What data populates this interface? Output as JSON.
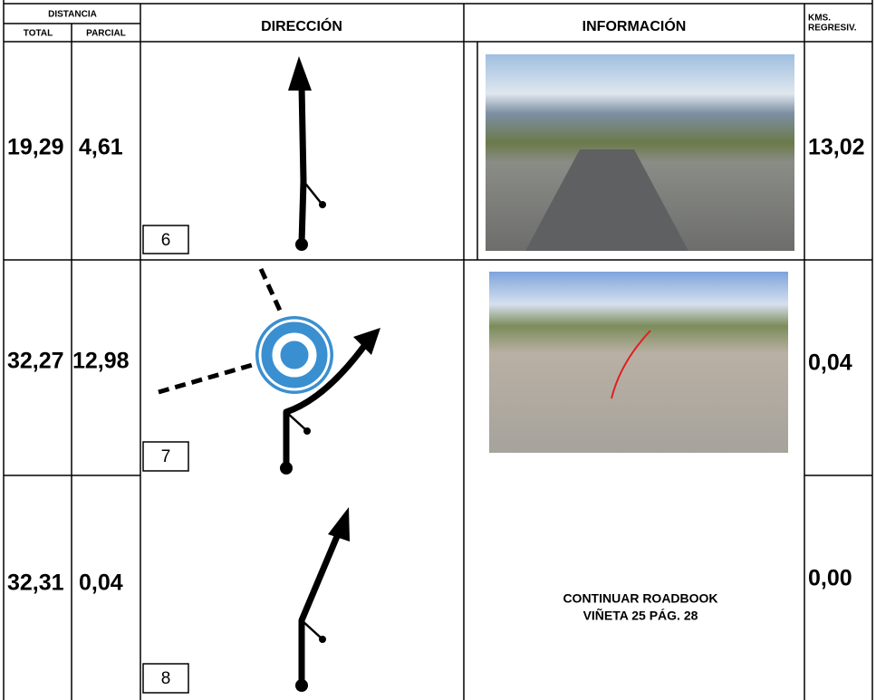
{
  "header": {
    "distance": "DISTANCIA",
    "total": "TOTAL",
    "partial": "PARCIAL",
    "direction": "DIRECCIÓN",
    "information": "INFORMACIÓN",
    "kms": [
      "KMS.",
      "REGRESIV."
    ]
  },
  "rows": [
    {
      "total": "19,29",
      "partial": "4,61",
      "box": "6",
      "kms": "13,02"
    },
    {
      "total": "32,27",
      "partial": "12,98",
      "box": "7",
      "kms": "0,04"
    },
    {
      "total": "32,31",
      "partial": "0,04",
      "box": "8",
      "kms": "0,00",
      "info": [
        "CONTINUAR ROADBOOK",
        "VIÑETA 25 PÁG. 28"
      ]
    }
  ]
}
